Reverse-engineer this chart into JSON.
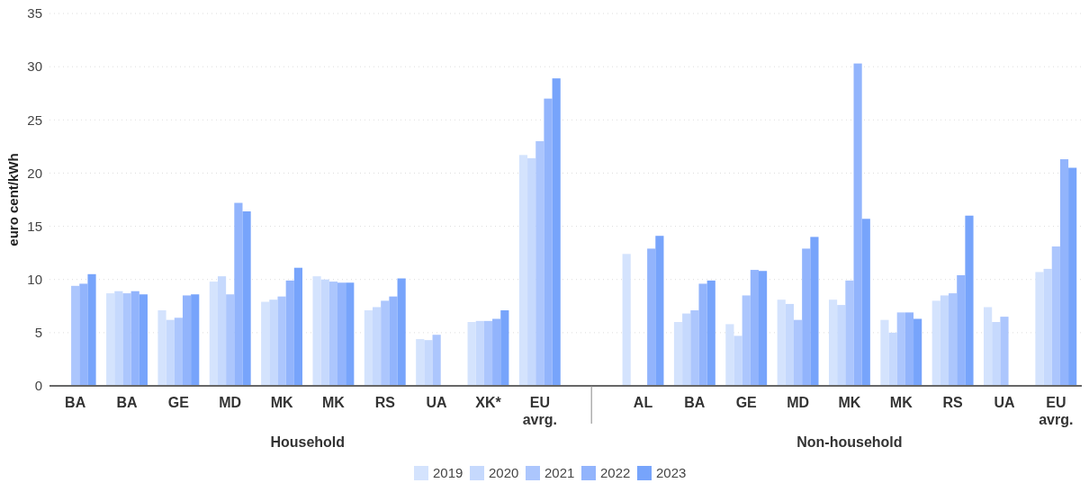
{
  "chart_data": {
    "type": "bar",
    "ylabel": "euro cent/kWh",
    "categories": [
      "BA",
      "BA",
      "GE",
      "MD",
      "MK",
      "MK",
      "RS",
      "UA",
      "XK*",
      "EU avrg.",
      null,
      "AL",
      "BA",
      "GE",
      "MD",
      "MK",
      "MK",
      "RS",
      "UA",
      "EU avrg."
    ],
    "series": [
      {
        "name": "2019",
        "color": "#d4e3fd",
        "values": [
          null,
          8.7,
          7.1,
          9.8,
          7.9,
          10.3,
          7.1,
          4.4,
          6.0,
          21.7,
          null,
          12.4,
          6.0,
          5.8,
          8.1,
          8.1,
          6.2,
          8.0,
          7.4,
          10.7
        ]
      },
      {
        "name": "2020",
        "color": "#c6d9fd",
        "values": [
          null,
          8.9,
          6.2,
          10.3,
          8.1,
          10.0,
          7.4,
          4.3,
          6.1,
          21.4,
          null,
          null,
          6.8,
          4.7,
          7.7,
          7.6,
          5.0,
          8.5,
          6.0,
          11.0
        ]
      },
      {
        "name": "2021",
        "color": "#acc6fd",
        "values": [
          9.4,
          8.7,
          6.4,
          8.6,
          8.4,
          9.8,
          8.0,
          4.8,
          6.1,
          23.0,
          null,
          null,
          7.1,
          8.5,
          6.2,
          9.9,
          6.9,
          8.7,
          6.5,
          13.1
        ]
      },
      {
        "name": "2022",
        "color": "#92b4fc",
        "values": [
          9.6,
          8.9,
          8.5,
          17.2,
          9.9,
          9.7,
          8.4,
          null,
          6.3,
          27.0,
          null,
          12.9,
          9.6,
          10.9,
          12.9,
          30.3,
          6.9,
          10.4,
          null,
          21.3
        ]
      },
      {
        "name": "2023",
        "color": "#77a4fb",
        "values": [
          10.5,
          8.6,
          8.6,
          16.4,
          11.1,
          9.7,
          10.1,
          null,
          7.1,
          28.9,
          null,
          14.1,
          9.9,
          10.8,
          14.0,
          15.7,
          6.3,
          16.0,
          null,
          20.5
        ]
      }
    ],
    "annotations": [
      "Household",
      "Non-household"
    ],
    "ylim": [
      0,
      35
    ],
    "yticks": [
      0,
      5,
      10,
      15,
      20,
      25,
      30,
      35
    ],
    "grid": "y",
    "legend": "bottom"
  }
}
